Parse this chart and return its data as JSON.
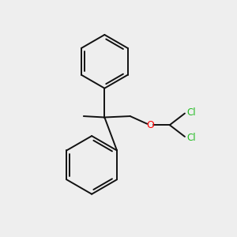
{
  "bg_color": "#eeeeee",
  "line_color": "#111111",
  "oxygen_color": "#ff0000",
  "chlorine_color": "#22bb22",
  "line_width": 1.4,
  "figsize": [
    3.0,
    3.0
  ],
  "dpi": 100,
  "xlim": [
    0,
    10
  ],
  "ylim": [
    0,
    10
  ]
}
